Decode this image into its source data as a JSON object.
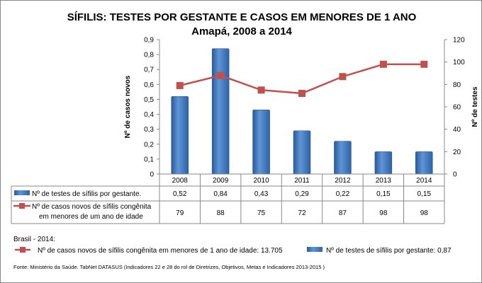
{
  "chart_data": {
    "type": "bar+line",
    "title": "SÍFILIS: TESTES POR GESTANTE E CASOS EM MENORES DE 1 ANO",
    "subtitle": "Amapá, 2008 a 2014",
    "categories": [
      "2008",
      "2009",
      "2010",
      "2011",
      "2012",
      "2013",
      "2014"
    ],
    "left_axis": {
      "label": "Nº de casos novos",
      "range": [
        0,
        0.9
      ],
      "ticks": [
        "0",
        "0,1",
        "0,2",
        "0,3",
        "0,4",
        "0,5",
        "0,6",
        "0,7",
        "0,8",
        "0,9"
      ]
    },
    "right_axis": {
      "label": "Nº de testes",
      "range": [
        0,
        120
      ],
      "ticks": [
        "0",
        "20",
        "40",
        "60",
        "80",
        "100",
        "120"
      ]
    },
    "series": [
      {
        "name": "Nº de testes de sífilis por gestante.",
        "type": "bar",
        "axis": "left",
        "color": "#4a7ebb",
        "values": [
          0.52,
          0.84,
          0.43,
          0.29,
          0.22,
          0.15,
          0.15
        ],
        "labels": [
          "0,52",
          "0,84",
          "0,43",
          "0,29",
          "0,22",
          "0,15",
          "0,15"
        ]
      },
      {
        "name_line1": "Nº de casos novos de sífilis congênita",
        "name_line2": "em menores de um ano de idade",
        "type": "line",
        "axis": "right",
        "color": "#c0504d",
        "values": [
          79,
          88,
          75,
          72,
          87,
          98,
          98
        ],
        "labels": [
          "79",
          "88",
          "75",
          "72",
          "87",
          "98",
          "98"
        ]
      }
    ]
  },
  "brasil": {
    "heading": "Brasil - 2014:",
    "cases": "Nº de casos novos de sífilis congênita em menores de 1 ano de idade: 13.705",
    "tests": "Nº de testes de sífilis por gestante: 0,87"
  },
  "source": "Fonte: Ministério da Saúde. TabNet DATASUS (Indicadores 22 e 28 do rol de Diretrizes, Objetivos, Metas e Indicadores 2013-2015 )"
}
